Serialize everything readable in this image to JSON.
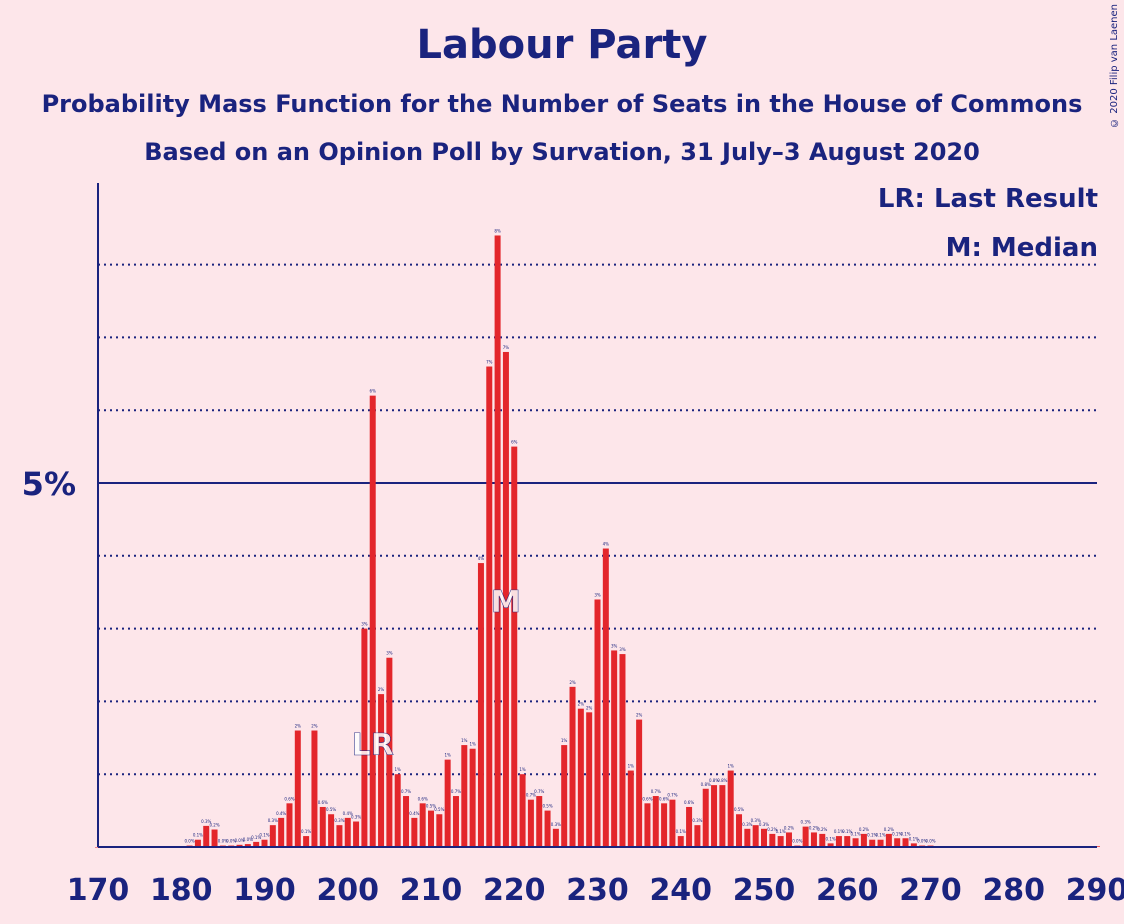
{
  "header": {
    "title": "Labour Party",
    "subtitle": "Probability Mass Function for the Number of Seats in the House of Commons",
    "subtitle2": "Based on an Opinion Poll by Survation, 31 July–3 August 2020",
    "copyright": "© 2020 Filip van Laenen"
  },
  "legend": {
    "last_result": "LR: Last Result",
    "median": "M: Median"
  },
  "colors": {
    "background": "#fde6ea",
    "bar": "#e3262b",
    "axis": "#1a237e"
  },
  "chart_data": {
    "type": "bar",
    "xlabel": "",
    "ylabel": "",
    "x_ticks": [
      170,
      180,
      190,
      200,
      210,
      220,
      230,
      240,
      250,
      260,
      270,
      280,
      290
    ],
    "y_tick_label": "5%",
    "y_major": 5,
    "y_gridlines": [
      1,
      2,
      3,
      4,
      5,
      6,
      7,
      8
    ],
    "ylim": [
      0,
      9
    ],
    "xlim": [
      170,
      290
    ],
    "last_result": 203,
    "median": 219,
    "last_result_marker": "LR",
    "median_marker": "M",
    "grid": true,
    "legend_position": "top-right",
    "seats": [
      170,
      171,
      172,
      173,
      174,
      175,
      176,
      177,
      178,
      179,
      180,
      181,
      182,
      183,
      184,
      185,
      186,
      187,
      188,
      189,
      190,
      191,
      192,
      193,
      194,
      195,
      196,
      197,
      198,
      199,
      200,
      201,
      202,
      203,
      204,
      205,
      206,
      207,
      208,
      209,
      210,
      211,
      212,
      213,
      214,
      215,
      216,
      217,
      218,
      219,
      220,
      221,
      222,
      223,
      224,
      225,
      226,
      227,
      228,
      229,
      230,
      231,
      232,
      233,
      234,
      235,
      236,
      237,
      238,
      239,
      240,
      241,
      242,
      243,
      244,
      245,
      246,
      247,
      248,
      249,
      250,
      251,
      252,
      253,
      254,
      255,
      256,
      257,
      258,
      259,
      260,
      261,
      262,
      263,
      264,
      265,
      266,
      267,
      268,
      269,
      270,
      271,
      272,
      273,
      274,
      275,
      276,
      277,
      278,
      279,
      280,
      281,
      282,
      283,
      284,
      285,
      286,
      287,
      288,
      289,
      290
    ],
    "values": [
      0,
      0,
      0,
      0,
      0,
      0,
      0,
      0,
      0,
      0,
      0,
      0.02,
      0.1,
      0.29,
      0.24,
      0.02,
      0.02,
      0.03,
      0.04,
      0.07,
      0.1,
      0.3,
      0.4,
      0.6,
      1.6,
      0.15,
      1.6,
      0.55,
      0.45,
      0.3,
      0.4,
      0.35,
      3.0,
      6.2,
      2.1,
      2.6,
      1.0,
      0.7,
      0.4,
      0.6,
      0.5,
      0.45,
      1.2,
      0.7,
      1.4,
      1.35,
      3.9,
      6.6,
      8.4,
      6.8,
      5.5,
      1.0,
      0.65,
      0.7,
      0.5,
      0.25,
      1.4,
      2.2,
      1.9,
      1.85,
      3.4,
      4.1,
      2.7,
      2.65,
      1.05,
      1.75,
      0.6,
      0.7,
      0.6,
      0.65,
      0.15,
      0.55,
      0.3,
      0.8,
      0.85,
      0.85,
      1.05,
      0.45,
      0.25,
      0.3,
      0.25,
      0.18,
      0.15,
      0.2,
      0.02,
      0.28,
      0.2,
      0.18,
      0.05,
      0.15,
      0.15,
      0.12,
      0.18,
      0.1,
      0.1,
      0.18,
      0.12,
      0.12,
      0.05,
      0.02,
      0.02,
      0.01,
      0.01,
      0.01,
      0.01,
      0.01,
      0.01,
      0.01,
      0.01,
      0.01,
      0.01,
      0.01,
      0.01,
      0.01,
      0.01,
      0.01,
      0.01,
      0.01,
      0.01,
      0.01,
      0.01
    ]
  }
}
